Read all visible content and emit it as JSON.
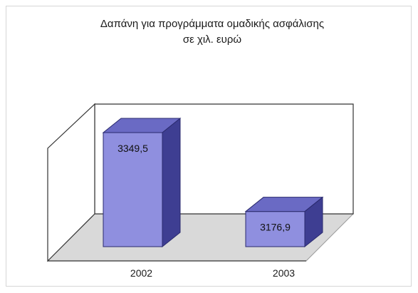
{
  "chart_data": {
    "type": "bar",
    "title": "Δαπάνη για προγράμματα ομαδικής ασφάλισης",
    "subtitle": "σε χιλ. ευρώ",
    "categories": [
      "2002",
      "2003"
    ],
    "values": [
      3349.5,
      3176.9
    ],
    "data_labels": [
      "3349,5",
      "3176,9"
    ],
    "ylim": [
      3100,
      3400
    ],
    "grid": false,
    "legend": "none",
    "style": "3d-column"
  },
  "colors": {
    "bar_front": "#8f8fdf",
    "bar_top": "#6a6ac4",
    "bar_side": "#3e3e92",
    "floor": "#d9d9d9",
    "wall_line": "#333333"
  }
}
